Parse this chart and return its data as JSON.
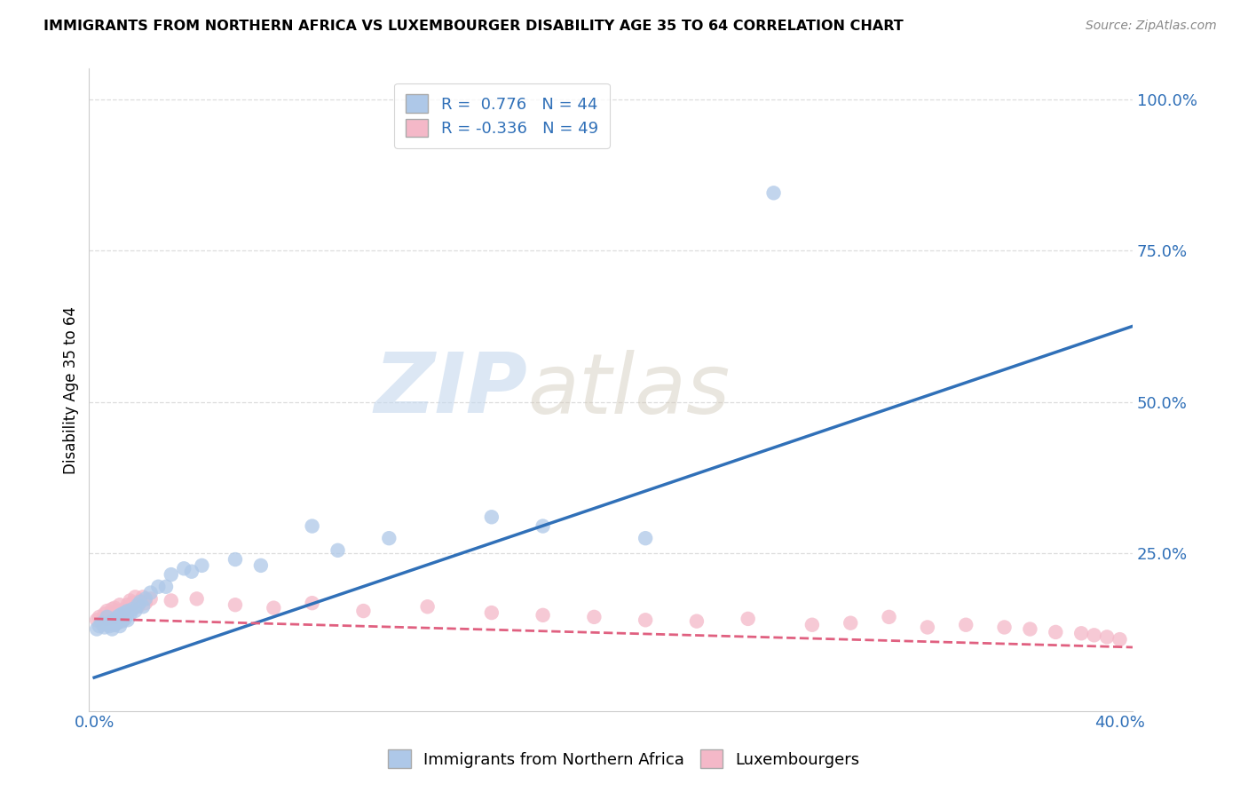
{
  "title": "IMMIGRANTS FROM NORTHERN AFRICA VS LUXEMBOURGER DISABILITY AGE 35 TO 64 CORRELATION CHART",
  "source": "Source: ZipAtlas.com",
  "xlabel_ticks": [
    "0.0%",
    "",
    "",
    "",
    "40.0%"
  ],
  "xlabel_tick_vals": [
    0.0,
    0.1,
    0.2,
    0.3,
    0.4
  ],
  "ylabel": "Disability Age 35 to 64",
  "ylabel_ticks_right": [
    "100.0%",
    "75.0%",
    "50.0%",
    "25.0%",
    ""
  ],
  "ylabel_tick_vals": [
    1.0,
    0.75,
    0.5,
    0.25,
    0.0
  ],
  "xlim": [
    -0.002,
    0.405
  ],
  "ylim": [
    -0.01,
    1.05
  ],
  "blue_R": 0.776,
  "blue_N": 44,
  "pink_R": -0.336,
  "pink_N": 49,
  "legend_label_blue": "Immigrants from Northern Africa",
  "legend_label_pink": "Luxembourgers",
  "blue_color": "#aec8e8",
  "pink_color": "#f4b8c8",
  "blue_line_color": "#3070b8",
  "pink_line_color": "#e06080",
  "watermark_zip": "ZIP",
  "watermark_atlas": "atlas",
  "grid_color": "#dddddd",
  "blue_scatter_x": [
    0.001,
    0.002,
    0.003,
    0.004,
    0.005,
    0.005,
    0.006,
    0.007,
    0.007,
    0.008,
    0.008,
    0.009,
    0.009,
    0.01,
    0.01,
    0.011,
    0.011,
    0.012,
    0.012,
    0.013,
    0.013,
    0.014,
    0.015,
    0.016,
    0.017,
    0.018,
    0.019,
    0.02,
    0.022,
    0.025,
    0.028,
    0.03,
    0.035,
    0.038,
    0.042,
    0.055,
    0.065,
    0.085,
    0.095,
    0.115,
    0.155,
    0.175,
    0.215,
    0.265
  ],
  "blue_scatter_y": [
    0.125,
    0.13,
    0.135,
    0.128,
    0.132,
    0.145,
    0.13,
    0.125,
    0.138,
    0.132,
    0.14,
    0.135,
    0.145,
    0.13,
    0.148,
    0.138,
    0.15,
    0.142,
    0.152,
    0.14,
    0.155,
    0.15,
    0.158,
    0.155,
    0.165,
    0.17,
    0.162,
    0.175,
    0.185,
    0.195,
    0.195,
    0.215,
    0.225,
    0.22,
    0.23,
    0.24,
    0.23,
    0.295,
    0.255,
    0.275,
    0.31,
    0.295,
    0.275,
    0.845
  ],
  "pink_scatter_x": [
    0.001,
    0.002,
    0.003,
    0.004,
    0.005,
    0.005,
    0.006,
    0.007,
    0.007,
    0.008,
    0.008,
    0.009,
    0.01,
    0.011,
    0.012,
    0.013,
    0.014,
    0.015,
    0.016,
    0.017,
    0.018,
    0.019,
    0.02,
    0.022,
    0.03,
    0.04,
    0.055,
    0.07,
    0.085,
    0.105,
    0.13,
    0.155,
    0.175,
    0.195,
    0.215,
    0.235,
    0.255,
    0.28,
    0.295,
    0.31,
    0.325,
    0.34,
    0.355,
    0.365,
    0.375,
    0.385,
    0.39,
    0.395,
    0.4
  ],
  "pink_scatter_y": [
    0.14,
    0.145,
    0.138,
    0.15,
    0.142,
    0.155,
    0.148,
    0.142,
    0.158,
    0.145,
    0.16,
    0.155,
    0.165,
    0.15,
    0.158,
    0.165,
    0.172,
    0.168,
    0.178,
    0.162,
    0.172,
    0.178,
    0.168,
    0.175,
    0.172,
    0.175,
    0.165,
    0.16,
    0.168,
    0.155,
    0.162,
    0.152,
    0.148,
    0.145,
    0.14,
    0.138,
    0.142,
    0.132,
    0.135,
    0.145,
    0.128,
    0.132,
    0.128,
    0.125,
    0.12,
    0.118,
    0.115,
    0.112,
    0.108
  ]
}
